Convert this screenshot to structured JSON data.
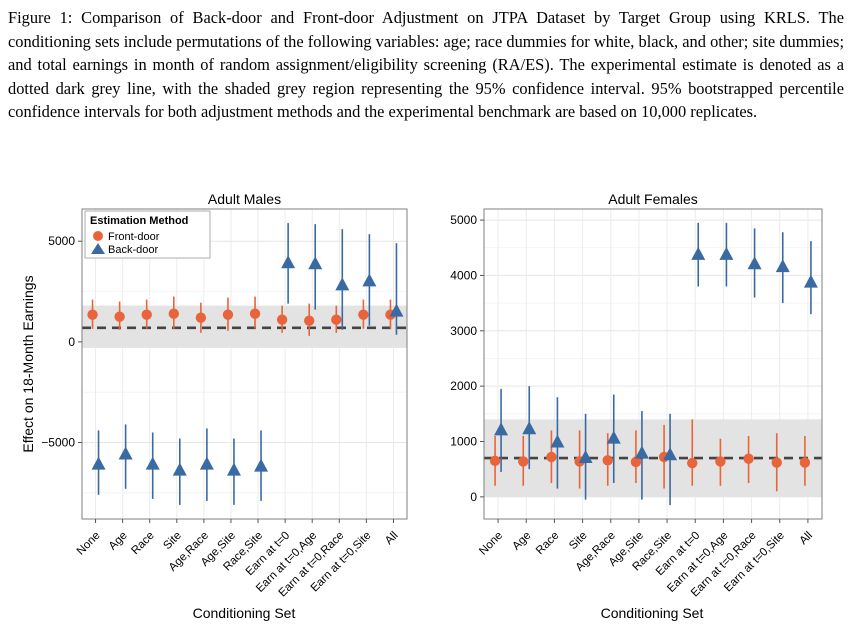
{
  "caption": "Figure 1: Comparison of Back-door and Front-door Adjustment on JTPA Dataset by Target Group using KRLS. The conditioning sets include permutations of the following variables: age; race dummies for white, black, and other; site dummies; and total earnings in month of random assignment/eligibility screening (RA/ES). The experimental estimate is denoted as a dotted dark grey line, with the shaded grey region representing the 95% confidence interval. 95% bootstrapped percentile confidence intervals for both adjustment methods and the experimental benchmark are based on 10,000 replicates.",
  "colors": {
    "front": "#e8643a",
    "back": "#3a6aa2",
    "band": "#e3e3e3",
    "dash": "#444444"
  },
  "legend": {
    "title": "Estimation Method",
    "items": [
      "Front-door",
      "Back-door"
    ]
  },
  "chart_data": [
    {
      "type": "scatter",
      "title": "Adult Males",
      "xlabel": "Conditioning Set",
      "ylabel": "Effect on 18-Month Earnings",
      "categories": [
        "None",
        "Age",
        "Race",
        "Site",
        "Age,Race",
        "Age,Site",
        "Race,Site",
        "Earn at t=0",
        "Earn at t=0,Age",
        "Earn at t=0,Race",
        "Earn at t=0,Site",
        "All"
      ],
      "ylim": [
        -8800,
        6600
      ],
      "yticks": [
        5000,
        0,
        -5000
      ],
      "ytick_labels": [
        "5000",
        "0",
        "−5000"
      ],
      "experimental": {
        "estimate": 700,
        "ci": [
          -300,
          1800
        ]
      },
      "series": [
        {
          "name": "Front-door",
          "marker": "circle",
          "values": [
            1350,
            1250,
            1350,
            1400,
            1200,
            1350,
            1400,
            1100,
            1050,
            1100,
            1350,
            1350
          ],
          "lower": [
            650,
            600,
            650,
            650,
            450,
            550,
            650,
            450,
            300,
            450,
            650,
            650
          ],
          "upper": [
            2100,
            2000,
            2100,
            2250,
            1950,
            2200,
            2250,
            1800,
            1900,
            1800,
            2100,
            2100
          ]
        },
        {
          "name": "Back-door",
          "marker": "triangle",
          "values": [
            -6100,
            -5600,
            -6100,
            -6400,
            -6100,
            -6400,
            -6200,
            3900,
            3850,
            2800,
            3000,
            1500
          ],
          "lower": [
            -7600,
            -7300,
            -7800,
            -8100,
            -7900,
            -8100,
            -7900,
            1900,
            1600,
            600,
            800,
            350
          ],
          "upper": [
            -4400,
            -4100,
            -4500,
            -4800,
            -4300,
            -4800,
            -4400,
            5900,
            5850,
            5600,
            5350,
            4900
          ]
        }
      ]
    },
    {
      "type": "scatter",
      "title": "Adult Females",
      "xlabel": "Conditioning Set",
      "ylabel": "",
      "categories": [
        "None",
        "Age",
        "Race",
        "Site",
        "Age,Race",
        "Age,Site",
        "Race,Site",
        "Earn at t=0",
        "Earn at t=0,Age",
        "Earn at t=0,Race",
        "Earn at t=0,Site",
        "All"
      ],
      "ylim": [
        -400,
        5200
      ],
      "yticks": [
        5000,
        4000,
        3000,
        2000,
        1000,
        0
      ],
      "ytick_labels": [
        "5000",
        "4000",
        "3000",
        "2000",
        "1000",
        "0"
      ],
      "experimental": {
        "estimate": 700,
        "ci": [
          0,
          1400
        ]
      },
      "series": [
        {
          "name": "Front-door",
          "marker": "circle",
          "values": [
            650,
            640,
            720,
            640,
            660,
            630,
            720,
            610,
            640,
            690,
            620,
            620
          ],
          "lower": [
            200,
            200,
            250,
            150,
            200,
            250,
            150,
            200,
            200,
            250,
            100,
            200
          ],
          "upper": [
            1100,
            1100,
            1200,
            1200,
            1150,
            1200,
            1300,
            1400,
            1050,
            1100,
            1150,
            1100
          ]
        },
        {
          "name": "Back-door",
          "marker": "triangle",
          "values": [
            1200,
            1220,
            980,
            700,
            1050,
            780,
            750,
            4370,
            4370,
            4200,
            4150,
            3870
          ],
          "lower": [
            450,
            500,
            150,
            -50,
            250,
            -50,
            -150,
            3800,
            3800,
            3600,
            3500,
            3300
          ],
          "upper": [
            1950,
            2000,
            1800,
            1500,
            1850,
            1550,
            1500,
            4950,
            4950,
            4850,
            4780,
            4620
          ]
        }
      ]
    }
  ]
}
